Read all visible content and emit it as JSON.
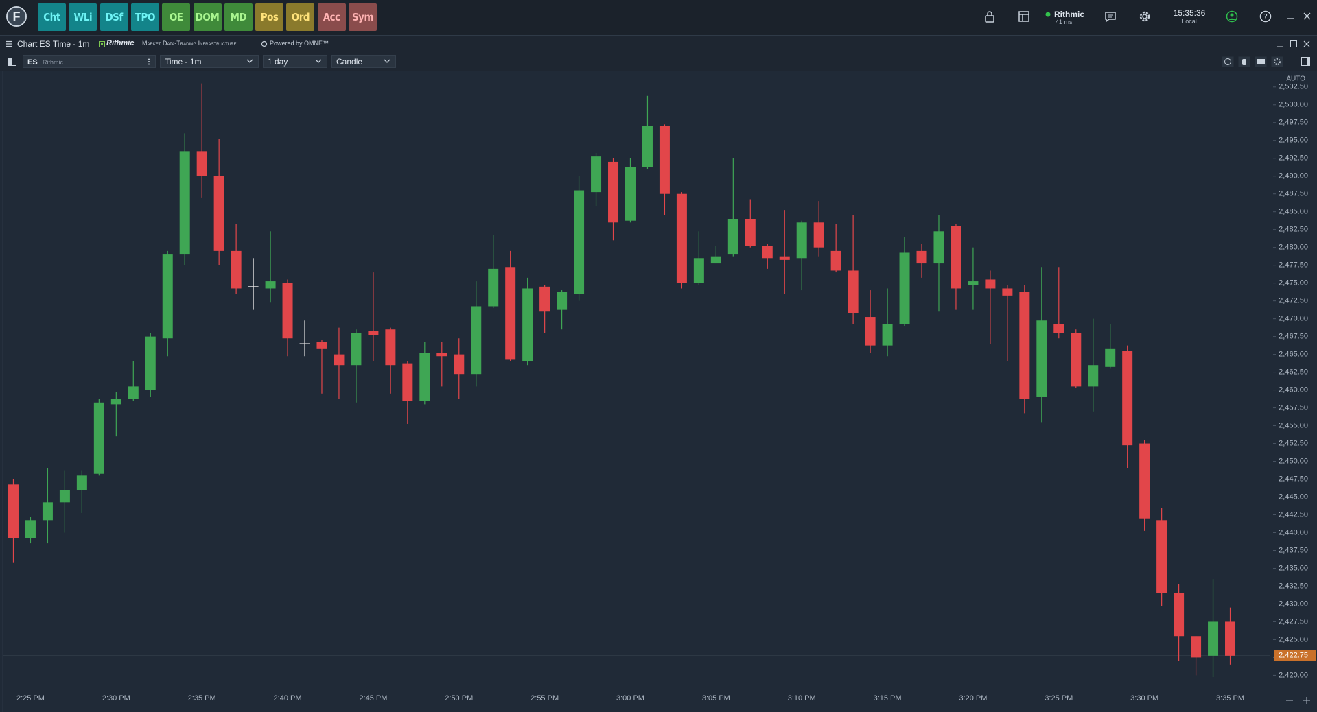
{
  "toolbar": {
    "buttons": [
      {
        "label": "Cht",
        "color": "#13848a",
        "text": "#6ef3f5"
      },
      {
        "label": "WLi",
        "color": "#13848a",
        "text": "#6ef3f5"
      },
      {
        "label": "DSf",
        "color": "#13848a",
        "text": "#6ef3f5"
      },
      {
        "label": "TPO",
        "color": "#13848a",
        "text": "#6ef3f5"
      },
      {
        "label": "OE",
        "color": "#3f8a3a",
        "text": "#a9f58f"
      },
      {
        "label": "DOM",
        "color": "#3f8a3a",
        "text": "#a9f58f"
      },
      {
        "label": "MD",
        "color": "#3f8a3a",
        "text": "#a9f58f"
      },
      {
        "label": "Pos",
        "color": "#8a7a2c",
        "text": "#ffe27a"
      },
      {
        "label": "Ord",
        "color": "#8a7a2c",
        "text": "#ffe27a"
      },
      {
        "label": "Acc",
        "color": "#8a4c4c",
        "text": "#ffb3b3"
      },
      {
        "label": "Sym",
        "color": "#8a4c4c",
        "text": "#ffb3b3"
      }
    ],
    "connection": {
      "name": "Rithmic",
      "latency": "41 ms"
    },
    "clock": {
      "time": "15:35:36",
      "zone": "Local"
    }
  },
  "window": {
    "title": "Chart ES Time - 1m",
    "brand": "Rithmic",
    "tagline": "Market Data-Trading Infrastructure",
    "powered": "Powered by OMNE™"
  },
  "chart_toolbar": {
    "symbol": "ES",
    "feed": "Rithmic",
    "period": "Time - 1m",
    "range": "1 day",
    "style": "Candle"
  },
  "chart_data": {
    "type": "candlestick",
    "categories": [
      null,
      "2:25 PM",
      null,
      null,
      null,
      null,
      "2:30 PM",
      null,
      null,
      null,
      null,
      "2:35 PM",
      null,
      null,
      null,
      null,
      "2:40 PM",
      null,
      null,
      null,
      null,
      "2:45 PM",
      null,
      null,
      null,
      null,
      "2:50 PM",
      null,
      null,
      null,
      null,
      "2:55 PM",
      null,
      null,
      null,
      null,
      "3:00 PM",
      null,
      null,
      null,
      null,
      "3:05 PM",
      null,
      null,
      null,
      null,
      "3:10 PM",
      null,
      null,
      null,
      null,
      "3:15 PM",
      null,
      null,
      null,
      null,
      "3:20 PM",
      null,
      null,
      null,
      null,
      "3:25 PM",
      null,
      null,
      null,
      null,
      "3:30 PM",
      null,
      null,
      null,
      null,
      "3:35 PM"
    ],
    "open": [
      2446.75,
      2439.25,
      2441.75,
      2444.25,
      2446,
      2448.25,
      2458,
      2458.75,
      2460,
      2467.25,
      2479,
      2493.5,
      2490,
      2479.5,
      2474.5,
      2474.25,
      2475,
      2466.5,
      2466.75,
      2465,
      2463.5,
      2468.25,
      2468.5,
      2463.75,
      2458.5,
      2465.25,
      2465,
      2462.25,
      2471.75,
      2477.25,
      2464,
      2474.5,
      2471.25,
      2473.5,
      2487.75,
      2492,
      2483.75,
      2491.25,
      2497,
      2487.5,
      2475,
      2477.75,
      2479,
      2484,
      2480.25,
      2478.75,
      2478.5,
      2483.5,
      2479.5,
      2476.75,
      2470.25,
      2466.25,
      2469.25,
      2479.5,
      2477.75,
      2483,
      2474.75,
      2475.5,
      2474.25,
      2473.75,
      2459,
      2469.25,
      2468,
      2460.5,
      2463.25,
      2465.5,
      2452.5,
      2441.75,
      2431.5,
      2425.5,
      2422.75,
      2427.5
    ],
    "high": [
      2447.5,
      2442.25,
      2449,
      2448.75,
      2448.75,
      2458.75,
      2459.75,
      2464,
      2468,
      2479.5,
      2496,
      2503,
      2495.25,
      2483.25,
      2478.5,
      2482.25,
      2475.5,
      2469.75,
      2467,
      2468.75,
      2468.5,
      2476.5,
      2468.75,
      2464,
      2466.75,
      2466.75,
      2467.25,
      2475.25,
      2481.75,
      2479.5,
      2475.75,
      2474.75,
      2474,
      2490,
      2493.25,
      2492.5,
      2492.5,
      2501.25,
      2497.25,
      2487.75,
      2482.25,
      2480.25,
      2492.5,
      2486.75,
      2480.5,
      2485.25,
      2483.75,
      2486.5,
      2483.25,
      2484.5,
      2474,
      2474.25,
      2481.5,
      2480.5,
      2484.5,
      2483.25,
      2480,
      2476.75,
      2474.75,
      2474.75,
      2477.25,
      2477.25,
      2468.5,
      2470,
      2469.25,
      2466.25,
      2453,
      2443.5,
      2432.75,
      2425.5,
      2433.5,
      2429.5
    ],
    "low": [
      2435.75,
      2438.5,
      2438.5,
      2440,
      2442.75,
      2448,
      2453.5,
      2458.5,
      2459,
      2464.75,
      2477.5,
      2487,
      2477.5,
      2473.5,
      2471.25,
      2472.25,
      2464.75,
      2464.75,
      2459.5,
      2458.75,
      2458.25,
      2464,
      2459.5,
      2455.25,
      2458,
      2460.5,
      2458.75,
      2460.5,
      2471.5,
      2464,
      2463.5,
      2468,
      2468.5,
      2472.5,
      2485.75,
      2481,
      2483.5,
      2491,
      2484.5,
      2474.25,
      2474.75,
      2477.75,
      2478.75,
      2480,
      2477,
      2473.5,
      2474,
      2478.75,
      2476.5,
      2469.25,
      2465.25,
      2464.75,
      2469,
      2475.75,
      2471,
      2471.25,
      2471.25,
      2466.5,
      2464,
      2456.75,
      2455.5,
      2467.25,
      2460.25,
      2457,
      2463,
      2449,
      2440.25,
      2429.75,
      2422,
      2420,
      2419.75,
      2421.5
    ],
    "close": [
      2439.25,
      2441.75,
      2444.25,
      2446,
      2448,
      2458.25,
      2458.75,
      2460.5,
      2467.5,
      2479,
      2493.5,
      2490,
      2479.5,
      2474.25,
      2474.5,
      2475.25,
      2467.25,
      2466.5,
      2465.75,
      2463.5,
      2468,
      2467.75,
      2463.5,
      2458.5,
      2465.25,
      2464.75,
      2462.25,
      2471.75,
      2477,
      2464.25,
      2474.25,
      2471,
      2473.75,
      2488,
      2492.75,
      2483.5,
      2491.25,
      2497,
      2487.5,
      2475,
      2478.5,
      2478.75,
      2484,
      2480.25,
      2478.5,
      2478.25,
      2483.5,
      2480,
      2476.75,
      2470.75,
      2466.25,
      2469.25,
      2479.25,
      2477.75,
      2482.25,
      2474.25,
      2475.25,
      2474.25,
      2473.25,
      2458.75,
      2469.75,
      2468,
      2460.5,
      2463.5,
      2465.75,
      2452.25,
      2442,
      2431.5,
      2425.5,
      2422.5,
      2427.5,
      2422.75
    ],
    "up_color": "#3fa654",
    "down_color": "#e2464a",
    "doji_color": "#e6e6e6",
    "ylim": [
      2418.5,
      2504.5
    ],
    "yticks": [
      {
        "value": 2420,
        "label": "2,420.00"
      },
      {
        "value": 2422.5,
        "label": "2,422.50"
      },
      {
        "value": 2425,
        "label": "2,425.00"
      },
      {
        "value": 2427.5,
        "label": "2,427.50"
      },
      {
        "value": 2430,
        "label": "2,430.00"
      },
      {
        "value": 2432.5,
        "label": "2,432.50"
      },
      {
        "value": 2435,
        "label": "2,435.00"
      },
      {
        "value": 2437.5,
        "label": "2,437.50"
      },
      {
        "value": 2440,
        "label": "2,440.00"
      },
      {
        "value": 2442.5,
        "label": "2,442.50"
      },
      {
        "value": 2445,
        "label": "2,445.00"
      },
      {
        "value": 2447.5,
        "label": "2,447.50"
      },
      {
        "value": 2450,
        "label": "2,450.00"
      },
      {
        "value": 2452.5,
        "label": "2,452.50"
      },
      {
        "value": 2455,
        "label": "2,455.00"
      },
      {
        "value": 2457.5,
        "label": "2,457.50"
      },
      {
        "value": 2460,
        "label": "2,460.00"
      },
      {
        "value": 2462.5,
        "label": "2,462.50"
      },
      {
        "value": 2465,
        "label": "2,465.00"
      },
      {
        "value": 2467.5,
        "label": "2,467.50"
      },
      {
        "value": 2470,
        "label": "2,470.00"
      },
      {
        "value": 2472.5,
        "label": "2,472.50"
      },
      {
        "value": 2475,
        "label": "2,475.00"
      },
      {
        "value": 2477.5,
        "label": "2,477.50"
      },
      {
        "value": 2480,
        "label": "2,480.00"
      },
      {
        "value": 2482.5,
        "label": "2,482.50"
      },
      {
        "value": 2485,
        "label": "2,485.00"
      },
      {
        "value": 2487.5,
        "label": "2,487.50"
      },
      {
        "value": 2490,
        "label": "2,490.00"
      },
      {
        "value": 2492.5,
        "label": "2,492.50"
      },
      {
        "value": 2495,
        "label": "2,495.00"
      },
      {
        "value": 2497.5,
        "label": "2,497.50"
      },
      {
        "value": 2500,
        "label": "2,500.00"
      },
      {
        "value": 2502.5,
        "label": "2,502.50"
      }
    ],
    "scale_mode": "AUTO",
    "last_price": {
      "value": 2422.75,
      "label": "2,422.75",
      "color": "#c9712b"
    }
  }
}
